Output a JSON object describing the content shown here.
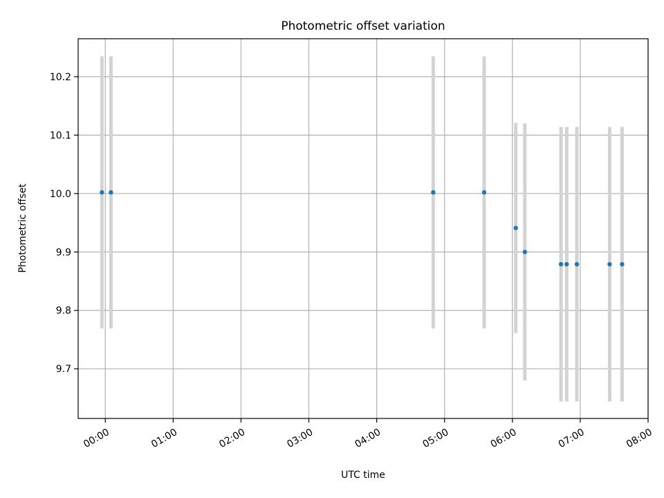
{
  "chart_data": {
    "type": "scatter",
    "title": "Photometric offset variation",
    "xlabel": "UTC time",
    "ylabel": "Photometric offset",
    "x_unit": "hours (UTC)",
    "xlim": [
      "-0.4",
      "8.0"
    ],
    "ylim": [
      9.615,
      10.265
    ],
    "x_ticks": [
      "00:00",
      "01:00",
      "02:00",
      "03:00",
      "04:00",
      "05:00",
      "06:00",
      "07:00",
      "08:00"
    ],
    "y_ticks": [
      "9.7",
      "9.8",
      "9.9",
      "10.0",
      "10.1",
      "10.2"
    ],
    "grid": true,
    "legend": "none",
    "point_color": "#1f77b4",
    "errorbar_color": "#d3d3d3",
    "points": [
      {
        "x": "23:57",
        "y": 10.002,
        "yerr": 0.233
      },
      {
        "x": "00:05",
        "y": 10.002,
        "yerr": 0.233
      },
      {
        "x": "04:50",
        "y": 10.002,
        "yerr": 0.233
      },
      {
        "x": "05:35",
        "y": 10.002,
        "yerr": 0.233
      },
      {
        "x": "06:03",
        "y": 9.941,
        "yerr": 0.18
      },
      {
        "x": "06:11",
        "y": 9.9,
        "yerr": 0.22
      },
      {
        "x": "06:43",
        "y": 9.879,
        "yerr": 0.235
      },
      {
        "x": "06:48",
        "y": 9.879,
        "yerr": 0.235
      },
      {
        "x": "06:57",
        "y": 9.879,
        "yerr": 0.235
      },
      {
        "x": "07:26",
        "y": 9.879,
        "yerr": 0.235
      },
      {
        "x": "07:37",
        "y": 9.879,
        "yerr": 0.235
      }
    ]
  }
}
